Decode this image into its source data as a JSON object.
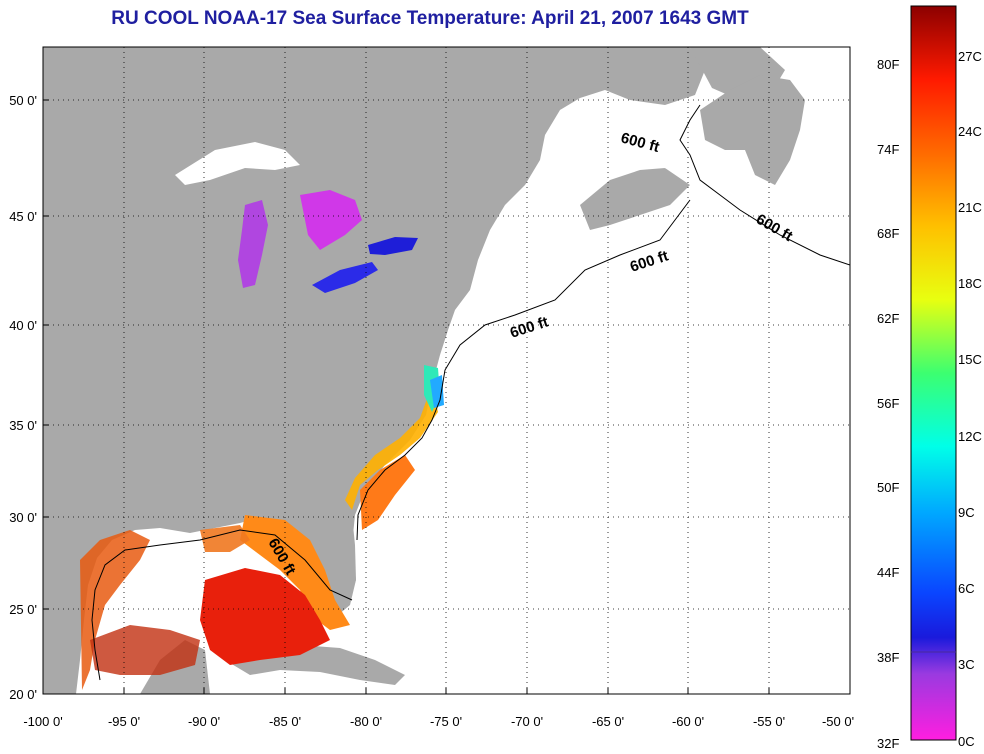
{
  "title": "RU COOL  NOAA-17  Sea Surface Temperature:  April 21, 2007 1643 GMT",
  "map": {
    "lon_range": [
      -100,
      -50
    ],
    "lat_range": [
      20,
      52
    ],
    "grid": true,
    "lon_ticks": [
      "-100 0'",
      "-95 0'",
      "-90 0'",
      "-85 0'",
      "-80 0'",
      "-75 0'",
      "-70 0'",
      "-65 0'",
      "-60 0'",
      "-55 0'",
      "-50 0'"
    ],
    "lat_ticks": [
      "20 0'",
      "25 0'",
      "30 0'",
      "35 0'",
      "40 0'",
      "45 0'",
      "50 0'"
    ],
    "contour_labels": [
      "600 ft",
      "600 ft",
      "600 ft",
      "600 ft",
      "600 ft"
    ],
    "land_color": "#a9a9a9",
    "water_color": "#ffffff"
  },
  "colorbar": {
    "fahrenheit_labels": [
      "32F",
      "38F",
      "44F",
      "50F",
      "56F",
      "62F",
      "68F",
      "74F",
      "80F"
    ],
    "celsius_labels": [
      "0C",
      "3C",
      "6C",
      "9C",
      "12C",
      "15C",
      "18C",
      "21C",
      "24C",
      "27C"
    ],
    "range_c": [
      0,
      29
    ]
  }
}
